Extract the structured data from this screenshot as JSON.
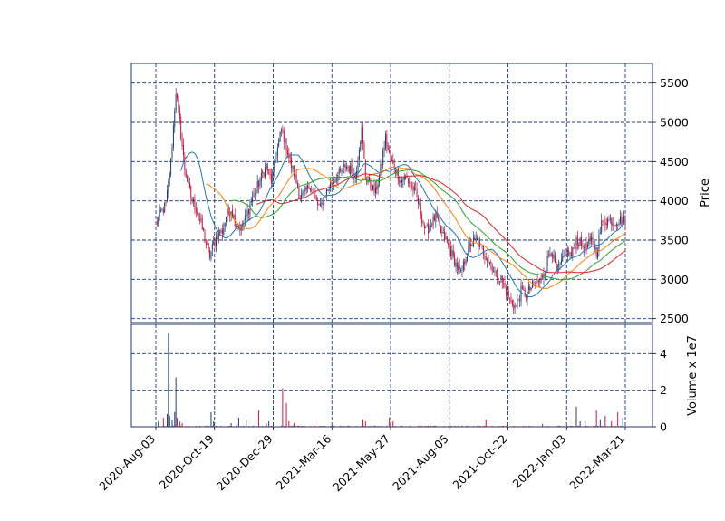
{
  "chart_data": {
    "type": "candlestick",
    "colors": {
      "up": "#1f3a6e",
      "down": "#c0143c",
      "grid": "#1f3a6e",
      "frame": "#1f3a6e"
    },
    "moving_average_colors": [
      "#1f77b4",
      "#ff7f0e",
      "#2ca02c",
      "#d62728"
    ],
    "x_tick_labels": [
      "2020-Aug-03",
      "2020-Oct-19",
      "2020-Dec-29",
      "2021-Mar-16",
      "2021-May-27",
      "2021-Aug-05",
      "2021-Oct-22",
      "2022-Jan-03",
      "2022-Mar-21"
    ],
    "price_axis": {
      "label": "Price",
      "side": "right",
      "ylim": [
        2450,
        5750
      ],
      "ticks": [
        2500,
        3000,
        3500,
        4000,
        4500,
        5000,
        5500
      ]
    },
    "volume_axis": {
      "label": "Volume x 1e7",
      "side": "right",
      "ylim": [
        0,
        5.6
      ],
      "ticks": [
        0,
        2,
        4
      ]
    },
    "grid": true,
    "price_path": [
      [
        0,
        3700
      ],
      [
        4,
        3850
      ],
      [
        8,
        3950
      ],
      [
        12,
        4500
      ],
      [
        16,
        5400
      ],
      [
        19,
        5000
      ],
      [
        23,
        4400
      ],
      [
        28,
        4050
      ],
      [
        32,
        3900
      ],
      [
        36,
        3700
      ],
      [
        40,
        3450
      ],
      [
        43,
        3300
      ],
      [
        46,
        3450
      ],
      [
        50,
        3600
      ],
      [
        53,
        3600
      ],
      [
        56,
        3800
      ],
      [
        60,
        3900
      ],
      [
        64,
        3700
      ],
      [
        68,
        3650
      ],
      [
        72,
        3800
      ],
      [
        76,
        4000
      ],
      [
        80,
        4150
      ],
      [
        84,
        4300
      ],
      [
        88,
        4450
      ],
      [
        92,
        4250
      ],
      [
        96,
        4600
      ],
      [
        100,
        4900
      ],
      [
        103,
        4750
      ],
      [
        107,
        4500
      ],
      [
        111,
        4300
      ],
      [
        115,
        4050
      ],
      [
        119,
        4100
      ],
      [
        123,
        4200
      ],
      [
        127,
        4000
      ],
      [
        131,
        3900
      ],
      [
        135,
        4100
      ],
      [
        139,
        4200
      ],
      [
        143,
        4300
      ],
      [
        147,
        4350
      ],
      [
        151,
        4450
      ],
      [
        155,
        4400
      ],
      [
        159,
        4300
      ],
      [
        162,
        4700
      ],
      [
        164,
        4900
      ],
      [
        167,
        4300
      ],
      [
        171,
        4200
      ],
      [
        175,
        4100
      ],
      [
        179,
        4400
      ],
      [
        183,
        4800
      ],
      [
        187,
        4500
      ],
      [
        191,
        4400
      ],
      [
        195,
        4250
      ],
      [
        199,
        4300
      ],
      [
        203,
        4200
      ],
      [
        207,
        4100
      ],
      [
        211,
        3850
      ],
      [
        215,
        3600
      ],
      [
        219,
        3700
      ],
      [
        223,
        3800
      ],
      [
        227,
        3600
      ],
      [
        231,
        3500
      ],
      [
        235,
        3350
      ],
      [
        239,
        3200
      ],
      [
        243,
        3050
      ],
      [
        247,
        3300
      ],
      [
        251,
        3450
      ],
      [
        255,
        3500
      ],
      [
        259,
        3400
      ],
      [
        263,
        3300
      ],
      [
        267,
        3200
      ],
      [
        271,
        3050
      ],
      [
        275,
        3000
      ],
      [
        279,
        2850
      ],
      [
        283,
        2700
      ],
      [
        287,
        2650
      ],
      [
        291,
        2850
      ],
      [
        295,
        2800
      ],
      [
        299,
        2900
      ],
      [
        303,
        2950
      ],
      [
        307,
        3000
      ],
      [
        311,
        3200
      ],
      [
        315,
        3400
      ],
      [
        319,
        3100
      ],
      [
        323,
        3200
      ],
      [
        327,
        3350
      ],
      [
        331,
        3300
      ],
      [
        335,
        3500
      ],
      [
        339,
        3450
      ],
      [
        343,
        3400
      ],
      [
        347,
        3500
      ],
      [
        351,
        3350
      ],
      [
        355,
        3700
      ],
      [
        357,
        3750
      ]
    ],
    "volume_spikes": [
      [
        2,
        0.3
      ],
      [
        6,
        0.5
      ],
      [
        9,
        0.7
      ],
      [
        10,
        5.1
      ],
      [
        11,
        0.6
      ],
      [
        13,
        0.4
      ],
      [
        15,
        0.8
      ],
      [
        16,
        2.7
      ],
      [
        17,
        0.5
      ],
      [
        19,
        0.3
      ],
      [
        21,
        0.2
      ],
      [
        44,
        0.8
      ],
      [
        46,
        0.3
      ],
      [
        60,
        0.2
      ],
      [
        66,
        0.5
      ],
      [
        72,
        0.4
      ],
      [
        82,
        0.9
      ],
      [
        88,
        0.2
      ],
      [
        90,
        0.3
      ],
      [
        101,
        2.1
      ],
      [
        104,
        1.3
      ],
      [
        106,
        0.3
      ],
      [
        110,
        0.2
      ],
      [
        165,
        0.4
      ],
      [
        167,
        0.3
      ],
      [
        186,
        0.5
      ],
      [
        189,
        0.3
      ],
      [
        263,
        0.4
      ],
      [
        308,
        0.15
      ],
      [
        335,
        1.1
      ],
      [
        338,
        0.3
      ],
      [
        342,
        0.3
      ],
      [
        351,
        0.9
      ],
      [
        354,
        0.4
      ],
      [
        358,
        0.6
      ],
      [
        363,
        0.3
      ],
      [
        368,
        0.8
      ],
      [
        372,
        0.5
      ]
    ]
  }
}
